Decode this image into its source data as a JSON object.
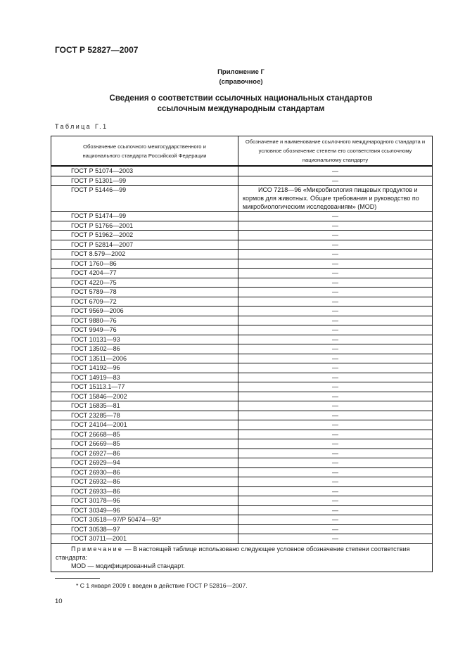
{
  "header": "ГОСТ Р 52827—2007",
  "appendix": {
    "title": "Приложение Г",
    "type": "(справочное)"
  },
  "title": {
    "line1": "Сведения о соответствии ссылочных национальных стандартов",
    "line2": "ссылочным международным стандартам"
  },
  "table_label": "Таблица Г.1",
  "table": {
    "headers": [
      "Обозначение ссылочного межгосударственного и национального стандарта Российской Федерации",
      "Обозначение и наименование ссылочного международного стандарта и условное обозначение степени его соответствия ссылочному национальному стандарту"
    ],
    "rows": [
      [
        "ГОСТ Р 51074—2003",
        "—"
      ],
      [
        "ГОСТ Р 51301—99",
        "—"
      ],
      [
        "ГОСТ Р 51446—99",
        "ИСО 7218—96 «Микробиология пищевых продуктов и кормов для животных. Общие требования и руководство по микробиологическим исследованиям» (MOD)"
      ],
      [
        "ГОСТ Р 51474—99",
        "—"
      ],
      [
        "ГОСТ Р 51766—2001",
        "—"
      ],
      [
        "ГОСТ Р 51962—2002",
        "—"
      ],
      [
        "ГОСТ Р 52814—2007",
        "—"
      ],
      [
        "ГОСТ 8.579—2002",
        "—"
      ],
      [
        "ГОСТ 1760—86",
        "—"
      ],
      [
        "ГОСТ 4204—77",
        "—"
      ],
      [
        "ГОСТ 4220—75",
        "—"
      ],
      [
        "ГОСТ 5789—78",
        "—"
      ],
      [
        "ГОСТ 6709—72",
        "—"
      ],
      [
        "ГОСТ 9569—2006",
        "—"
      ],
      [
        "ГОСТ 9880—76",
        "—"
      ],
      [
        "ГОСТ 9949—76",
        "—"
      ],
      [
        "ГОСТ 10131—93",
        "—"
      ],
      [
        "ГОСТ 13502—86",
        "—"
      ],
      [
        "ГОСТ 13511—2006",
        "—"
      ],
      [
        "ГОСТ 14192—96",
        "—"
      ],
      [
        "ГОСТ 14919—83",
        "—"
      ],
      [
        "ГОСТ 15113.1—77",
        "—"
      ],
      [
        "ГОСТ 15846—2002",
        "—"
      ],
      [
        "ГОСТ 16835—81",
        "—"
      ],
      [
        "ГОСТ 23285—78",
        "—"
      ],
      [
        "ГОСТ 24104—2001",
        "—"
      ],
      [
        "ГОСТ 26668—85",
        "—"
      ],
      [
        "ГОСТ 26669—85",
        "—"
      ],
      [
        "ГОСТ 26927—86",
        "—"
      ],
      [
        "ГОСТ 26929—94",
        "—"
      ],
      [
        "ГОСТ 26930—86",
        "—"
      ],
      [
        "ГОСТ 26932—86",
        "—"
      ],
      [
        "ГОСТ 26933—86",
        "—"
      ],
      [
        "ГОСТ 30178—96",
        "—"
      ],
      [
        "ГОСТ 30349—96",
        "—"
      ],
      [
        "ГОСТ 30518—97/Р 50474—93*",
        "—"
      ],
      [
        "ГОСТ 30538—97",
        "—"
      ],
      [
        "ГОСТ 30711—2001",
        "—"
      ]
    ],
    "note": {
      "label": "Примечание",
      "text": " — В настоящей таблице использовано следующее условное обозначение степени соответствия стандарта:",
      "line2": "MOD — модифицированный стандарт."
    }
  },
  "footnote": "* С 1 января 2009 г. введен в действие ГОСТ Р 52816—2007.",
  "page_number": "10"
}
